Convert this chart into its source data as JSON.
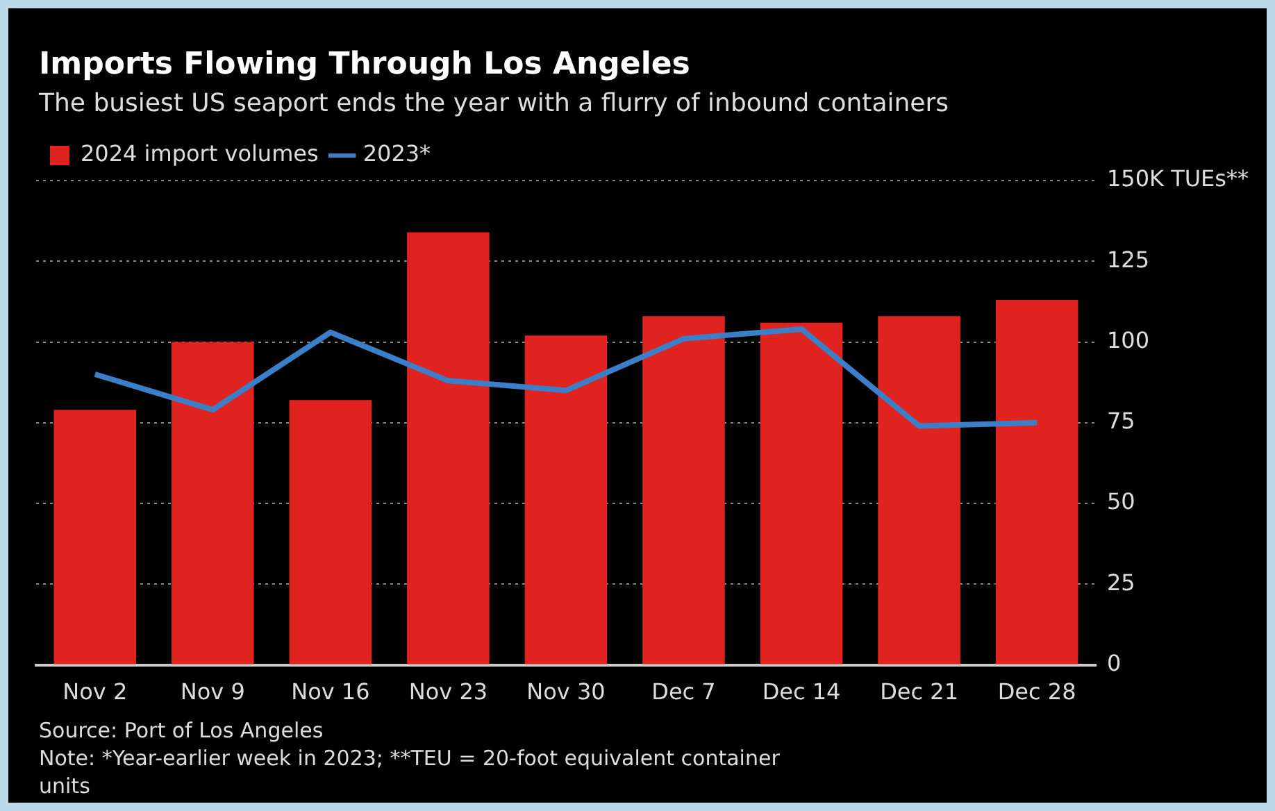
{
  "chart_data": {
    "type": "bar",
    "title": "Imports Flowing Through Los Angeles",
    "subtitle": "The busiest US seaport ends the year with a flurry of inbound containers",
    "categories": [
      "Nov 2",
      "Nov 9",
      "Nov 16",
      "Nov 23",
      "Nov 30",
      "Dec 7",
      "Dec 14",
      "Dec 21",
      "Dec 28"
    ],
    "series": [
      {
        "name": "2024 import volumes",
        "color": "#e0231f",
        "values": [
          79,
          100,
          82,
          134,
          102,
          108,
          106,
          108,
          113
        ]
      },
      {
        "name": "2023*",
        "type": "line",
        "color": "#3a7fc8",
        "values": [
          90,
          79,
          103,
          88,
          85,
          101,
          104,
          74,
          75
        ]
      }
    ],
    "ylim": [
      0,
      150
    ],
    "yticks": [
      0,
      25,
      50,
      75,
      100,
      125,
      {
        "value": 150,
        "label": "150K TUEs**"
      }
    ],
    "grid": "y",
    "legend": "top left",
    "marker": "none",
    "line_style": "solid",
    "annotations": [
      "Source: Port of Los Angeles",
      "Note: *Year-earlier week in 2023; **TEU = 20-foot equivalent container units"
    ]
  }
}
